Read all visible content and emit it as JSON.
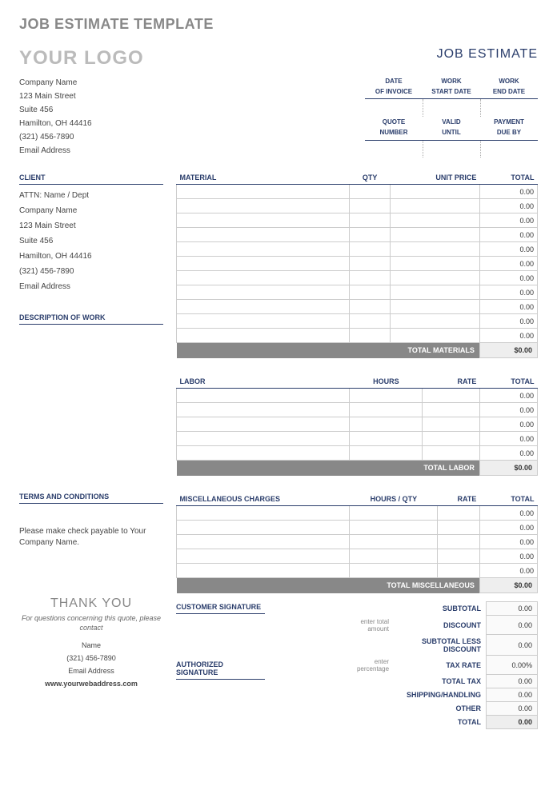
{
  "page_title": "JOB ESTIMATE TEMPLATE",
  "logo": "YOUR LOGO",
  "doc_label": "JOB ESTIMATE",
  "company": {
    "name": "Company Name",
    "addr1": "123 Main Street",
    "addr2": "Suite 456",
    "city": "Hamilton, OH  44416",
    "phone": "(321) 456-7890",
    "email": "Email Address"
  },
  "meta": {
    "r1c1a": "DATE",
    "r1c1b": "OF INVOICE",
    "r1c2a": "WORK",
    "r1c2b": "START DATE",
    "r1c3a": "WORK",
    "r1c3b": "END DATE",
    "r2c1a": "QUOTE",
    "r2c1b": "NUMBER",
    "r2c2a": "VALID",
    "r2c2b": "UNTIL",
    "r2c3a": "PAYMENT",
    "r2c3b": "DUE BY"
  },
  "client_head": "CLIENT",
  "client": {
    "attn": "ATTN: Name / Dept",
    "name": "Company Name",
    "addr1": "123 Main Street",
    "addr2": "Suite 456",
    "city": "Hamilton, OH  44416",
    "phone": "(321) 456-7890",
    "email": "Email Address"
  },
  "desc_head": "DESCRIPTION OF WORK",
  "terms_head": "TERMS AND CONDITIONS",
  "terms_body": "Please make check payable to Your Company Name.",
  "thanks": "THANK YOU",
  "contact_note": "For questions concerning this quote, please contact",
  "contact": {
    "name": "Name",
    "phone": "(321) 456-7890",
    "email": "Email Address",
    "web": "www.yourwebaddress.com"
  },
  "material": {
    "head": "MATERIAL",
    "qty": "QTY",
    "unit": "UNIT PRICE",
    "total": "TOTAL",
    "rows": [
      "0.00",
      "0.00",
      "0.00",
      "0.00",
      "0.00",
      "0.00",
      "0.00",
      "0.00",
      "0.00",
      "0.00",
      "0.00"
    ],
    "total_label": "TOTAL MATERIALS",
    "total_val": "$0.00"
  },
  "labor": {
    "head": "LABOR",
    "hours": "HOURS",
    "rate": "RATE",
    "total": "TOTAL",
    "rows": [
      "0.00",
      "0.00",
      "0.00",
      "0.00",
      "0.00"
    ],
    "total_label": "TOTAL LABOR",
    "total_val": "$0.00"
  },
  "misc": {
    "head": "MISCELLANEOUS CHARGES",
    "hq": "HOURS / QTY",
    "rate": "RATE",
    "total": "TOTAL",
    "rows": [
      "0.00",
      "0.00",
      "0.00",
      "0.00",
      "0.00"
    ],
    "total_label": "TOTAL MISCELLANEOUS",
    "total_val": "$0.00"
  },
  "summary": {
    "subtotal": "SUBTOTAL",
    "subtotal_v": "0.00",
    "hint1": "enter total amount",
    "discount": "DISCOUNT",
    "discount_v": "0.00",
    "sub_less": "SUBTOTAL LESS DISCOUNT",
    "sub_less_v": "0.00",
    "hint2": "enter percentage",
    "taxrate": "TAX RATE",
    "taxrate_v": "0.00%",
    "totaltax": "TOTAL TAX",
    "totaltax_v": "0.00",
    "ship": "SHIPPING/HANDLING",
    "ship_v": "0.00",
    "other": "OTHER",
    "other_v": "0.00",
    "total": "TOTAL",
    "total_v": "0.00"
  },
  "sig1": "CUSTOMER SIGNATURE",
  "sig2": "AUTHORIZED SIGNATURE",
  "colors": {
    "accent": "#2a3d6b",
    "muted": "#888888",
    "border": "#cccccc"
  }
}
